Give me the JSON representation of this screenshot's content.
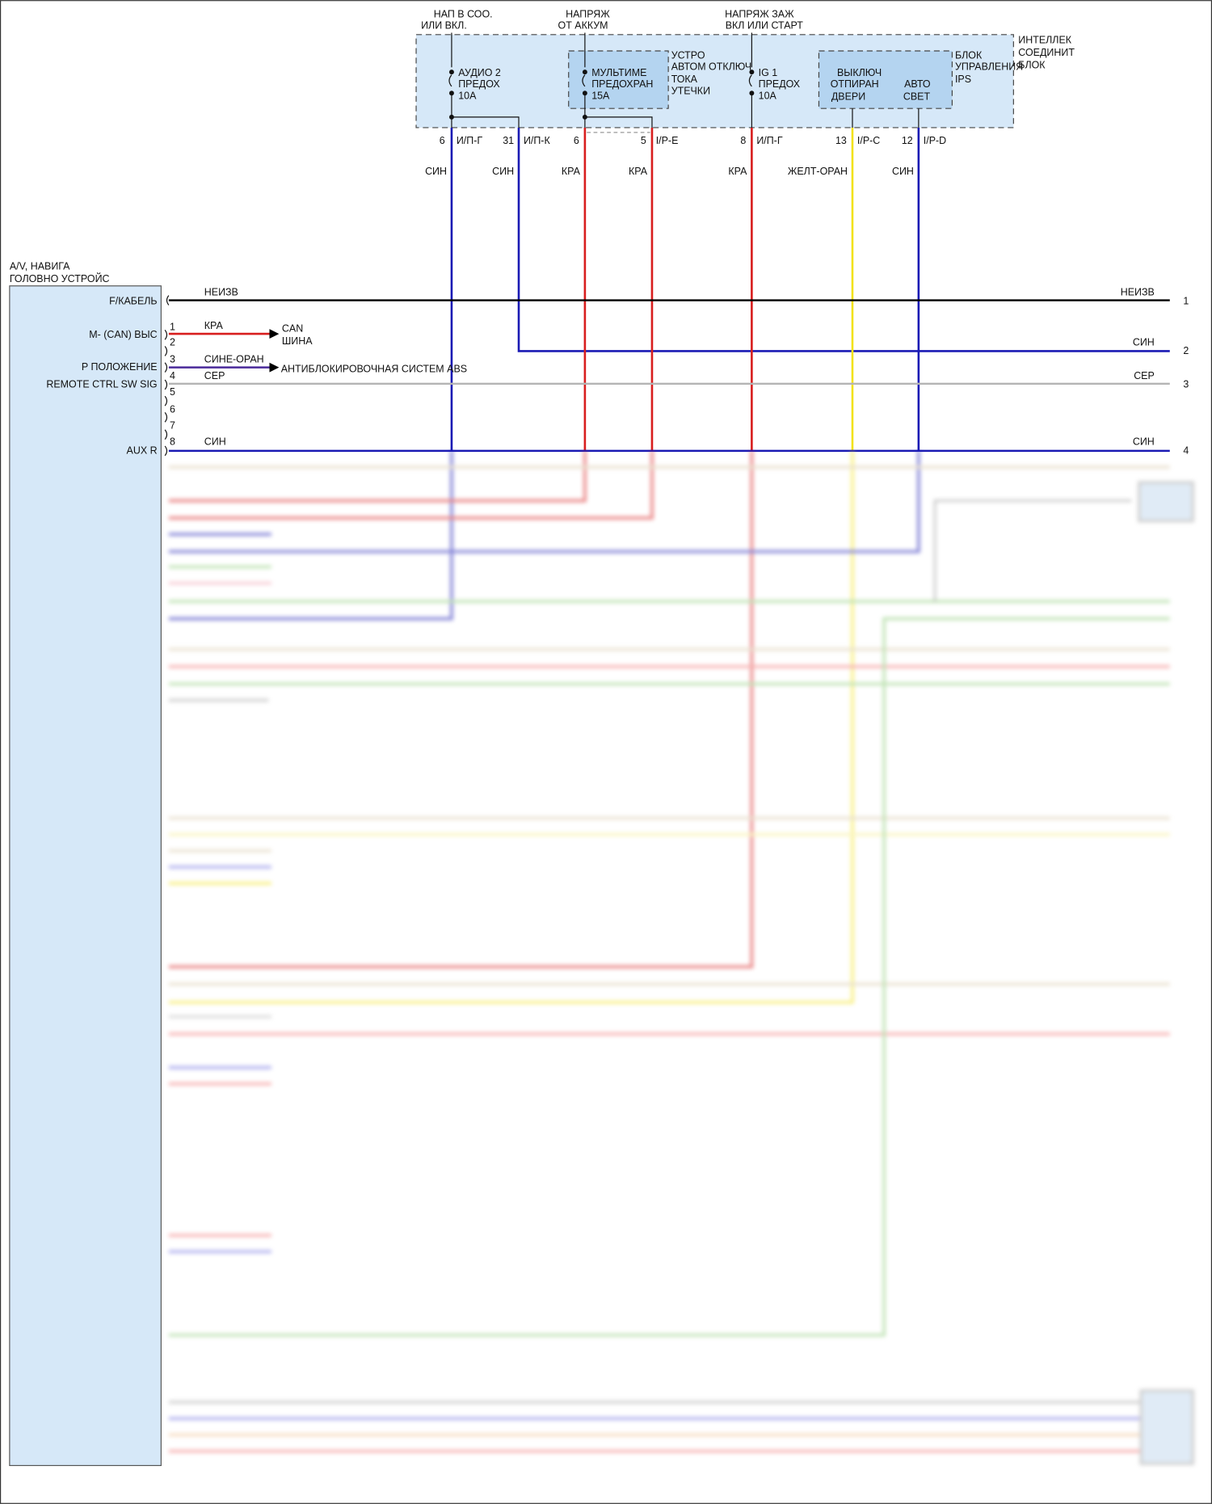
{
  "colors": {
    "blue": "#1a1ab4",
    "red": "#d81e1e",
    "yellow": "#f2e21a",
    "gray": "#b4b4b4",
    "black": "#000000",
    "purple": "#4a2a9a",
    "box_fill": "#d6e8f8",
    "inner_fill": "#b4d4f0",
    "green": "#8ccc78",
    "tan": "#d8c8a8"
  },
  "top": {
    "supplies": [
      {
        "line1": "НАП В СОО.",
        "line2": "ИЛИ ВКЛ."
      },
      {
        "line1": "НАПРЯЖ",
        "line2": "ОТ АККУМ"
      },
      {
        "line1": "НАПРЯЖ ЗАЖ",
        "line2": "ВКЛ ИЛИ СТАРТ"
      }
    ],
    "junction_block": [
      "ИНТЕЛЛЕК",
      "СОЕДИНИТ",
      "БЛОК"
    ],
    "fuse_audio": [
      "АУДИО 2",
      "ПРЕДОХ",
      "10А"
    ],
    "fuse_multimedia": [
      "МУЛЬТИМЕ",
      "ПРЕДОХРАН",
      "15А"
    ],
    "leak_device": [
      "УСТРО",
      "АВТОМ ОТКЛЮЧ",
      "ТОКА",
      "УТЕЧКИ"
    ],
    "fuse_ig1": [
      "IG 1",
      "ПРЕДОХ",
      "10А"
    ],
    "ips_block": [
      "БЛОК",
      "УПРАВЛЕНИЯ",
      "IPS"
    ],
    "door_switch": [
      "ВЫКЛЮЧ",
      "ОТПИРАН",
      "ДВЕРИ"
    ],
    "auto_light": [
      "АВТО",
      "СВЕТ"
    ],
    "pins": [
      {
        "num": "6",
        "conn": "И/П-Г",
        "wire": "СИН"
      },
      {
        "num": "31",
        "conn": "И/П-К",
        "wire": "СИН"
      },
      {
        "num": "6",
        "conn": "",
        "wire": "КРА"
      },
      {
        "num": "5",
        "conn": "I/P-E",
        "wire": "КРА"
      },
      {
        "num": "8",
        "conn": "И/П-Г",
        "wire": "КРА"
      },
      {
        "num": "13",
        "conn": "I/P-C",
        "wire": "ЖЕЛТ-ОРАН"
      },
      {
        "num": "12",
        "conn": "I/P-D",
        "wire": "СИН"
      }
    ]
  },
  "head_unit": {
    "title": [
      "A/V, НАВИГА",
      "ГОЛОВНО УСТРОЙС"
    ],
    "signals": [
      "F/КАБЕЛЬ",
      "M- (CAN) ВЫС",
      "P ПОЛОЖЕНИЕ",
      "REMOTE CTRL SW SIG",
      "AUX R"
    ],
    "pin_numbers": [
      "1",
      "2",
      "3",
      "4",
      "5",
      "6",
      "7",
      "8"
    ]
  },
  "wires": [
    {
      "label": "НЕИЗВ",
      "right_label": "НЕИЗВ",
      "right_pin": "1"
    },
    {
      "label": "КРА",
      "target": [
        "CAN",
        "ШИНА"
      ]
    },
    {
      "label": "СИНЕ-ОРАН",
      "target": [
        "АНТИБЛОКИРОВОЧНАЯ СИСТЕМ ABS"
      ]
    },
    {
      "label": "СЕР",
      "right_label": "СЕР",
      "right_pin": "3"
    },
    {
      "label": "СИН",
      "right_label": "СИН",
      "right_pin": "4"
    },
    {
      "right_label": "СИН",
      "right_pin": "2"
    }
  ]
}
